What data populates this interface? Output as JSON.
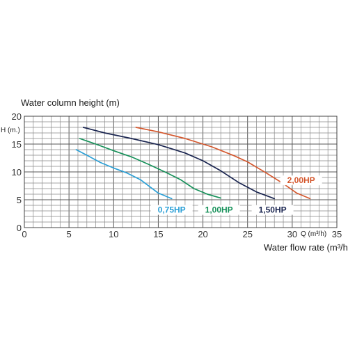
{
  "chart_data": {
    "type": "line",
    "title": "Water column height (m)",
    "xlabel": "Water flow rate (m³/h)",
    "ylabel": "H (m.)",
    "x_unit_label": "Q (m³/h)",
    "xlim": [
      0,
      35
    ],
    "ylim": [
      0,
      20
    ],
    "x_major_ticks": [
      "0",
      "5",
      "10",
      "15",
      "20",
      "25",
      "30",
      "35"
    ],
    "y_major_ticks": [
      "0",
      "5",
      "10",
      "15",
      "20"
    ],
    "x_minor_step": 1,
    "y_minor_step": 1,
    "grid": true,
    "series": [
      {
        "name": "0,75HP",
        "color": "#2a9fd6",
        "points": [
          [
            5.8,
            14.0
          ],
          [
            7,
            13.0
          ],
          [
            8.5,
            11.7
          ],
          [
            10,
            10.7
          ],
          [
            11.5,
            9.8
          ],
          [
            13,
            8.6
          ],
          [
            14,
            7.4
          ],
          [
            15,
            6.2
          ],
          [
            16.5,
            5.2
          ]
        ]
      },
      {
        "name": "1,00HP",
        "color": "#17915a",
        "points": [
          [
            6.2,
            16.0
          ],
          [
            8,
            15.0
          ],
          [
            10,
            13.8
          ],
          [
            12,
            12.7
          ],
          [
            14,
            11.3
          ],
          [
            16,
            9.8
          ],
          [
            17.5,
            8.6
          ],
          [
            19,
            7.0
          ],
          [
            20.5,
            6.0
          ],
          [
            22,
            5.3
          ]
        ]
      },
      {
        "name": "1,50HP",
        "color": "#1a2550",
        "points": [
          [
            6.6,
            18.0
          ],
          [
            9,
            17.0
          ],
          [
            12,
            16.0
          ],
          [
            15,
            14.9
          ],
          [
            18,
            13.4
          ],
          [
            20,
            12.0
          ],
          [
            22,
            10.2
          ],
          [
            24,
            8.1
          ],
          [
            26,
            6.4
          ],
          [
            28,
            5.2
          ]
        ]
      },
      {
        "name": "2,00HP",
        "color": "#d4572d",
        "points": [
          [
            12.5,
            18.0
          ],
          [
            15,
            17.2
          ],
          [
            18,
            16.0
          ],
          [
            21,
            14.5
          ],
          [
            23.5,
            12.9
          ],
          [
            25,
            11.8
          ],
          [
            27,
            9.9
          ],
          [
            29,
            7.9
          ],
          [
            30.5,
            6.2
          ],
          [
            32,
            5.2
          ]
        ]
      }
    ]
  }
}
